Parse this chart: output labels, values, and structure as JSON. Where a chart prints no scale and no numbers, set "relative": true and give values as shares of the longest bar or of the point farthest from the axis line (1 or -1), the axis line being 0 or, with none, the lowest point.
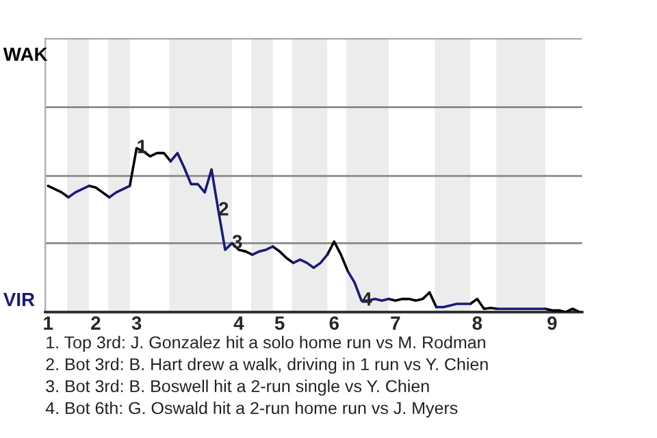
{
  "chart_data": {
    "type": "line",
    "relative": true,
    "categories": [
      "1",
      null,
      null,
      null,
      null,
      null,
      null,
      "2",
      null,
      null,
      null,
      null,
      null,
      "3",
      null,
      null,
      null,
      null,
      null,
      null,
      null,
      null,
      null,
      null,
      null,
      null,
      null,
      null,
      "4",
      null,
      null,
      null,
      null,
      null,
      "5",
      null,
      null,
      null,
      null,
      null,
      null,
      null,
      "6",
      null,
      null,
      null,
      null,
      null,
      null,
      null,
      null,
      "7",
      null,
      null,
      null,
      null,
      null,
      null,
      null,
      null,
      null,
      null,
      null,
      "8",
      null,
      null,
      null,
      null,
      null,
      null,
      null,
      null,
      null,
      null,
      "9",
      null,
      null,
      null,
      null
    ],
    "ref_lines": [
      {
        "axis": "y",
        "value": 0.42,
        "color": "#888888"
      },
      {
        "axis": "y",
        "value": 0.83,
        "color": "#888888"
      },
      {
        "axis": "y",
        "value": 1.25,
        "color": "#888888"
      },
      {
        "axis": "y",
        "value": 1.67,
        "color": "#888888"
      }
    ],
    "marker": "none",
    "line_style": "solid",
    "series": [
      {
        "color": "#000000",
        "values": [
          0.77,
          0.75,
          0.73,
          0.7,
          null,
          null,
          0.77,
          0.76,
          0.73,
          0.7,
          null,
          null,
          0.77,
          1,
          0.98,
          0.95,
          0.97,
          0.97,
          0.92,
          null,
          null,
          null,
          null,
          null,
          null,
          null,
          null,
          0.42,
          0.38,
          0.37,
          0.35,
          null,
          null,
          0.4,
          0.37,
          0.33,
          0.3,
          null,
          null,
          null,
          null,
          0.35,
          0.43,
          0.35,
          0.25,
          null,
          null,
          null,
          null,
          null,
          0.08,
          0.07,
          0.08,
          0.08,
          0.07,
          0.08,
          0.12,
          0.03,
          null,
          null,
          null,
          null,
          0.05,
          0.08,
          0.02,
          0.025,
          0.02,
          null,
          null,
          null,
          null,
          null,
          null,
          0.02,
          0.01,
          0.01,
          0,
          0.02,
          0
        ]
      },
      {
        "color": "#1a1a7a",
        "values": [
          null,
          null,
          null,
          0.7,
          0.73,
          0.75,
          0.77,
          null,
          null,
          0.7,
          0.73,
          0.75,
          0.77,
          null,
          null,
          null,
          null,
          null,
          0.92,
          0.97,
          0.88,
          0.78,
          0.78,
          0.73,
          0.87,
          0.62,
          0.38,
          0.42,
          null,
          null,
          0.35,
          0.37,
          0.38,
          0.4,
          null,
          null,
          0.3,
          0.32,
          0.3,
          0.27,
          0.3,
          0.35,
          null,
          null,
          0.25,
          0.18,
          0.07,
          0.07,
          0.08,
          0.07,
          0.08,
          null,
          null,
          null,
          null,
          null,
          null,
          0.03,
          0.03,
          0.04,
          0.05,
          0.05,
          0.05,
          null,
          null,
          null,
          0.02,
          0.02,
          0.02,
          0.02,
          0.02,
          0.02,
          0.02,
          0.02,
          null,
          null,
          null,
          null,
          null
        ]
      }
    ],
    "annotations": [
      "WAK",
      "VIR",
      {
        "text": "1",
        "y": 1
      },
      {
        "text": "2",
        "y": 0.62
      },
      {
        "text": "3",
        "y": 0.42
      },
      {
        "text": "4",
        "y": 0.07
      },
      "1. Top 3rd: J. Gonzalez hit a solo home run vs M. Rodman",
      "2. Bot 3rd: B. Hart drew a walk, driving in 1 run vs Y. Chien",
      "3. Bot 3rd: B. Boswell hit a 2-run single vs Y. Chien",
      "4. Bot 6th: G. Oswald hit a 2-run home run vs J. Myers"
    ]
  }
}
